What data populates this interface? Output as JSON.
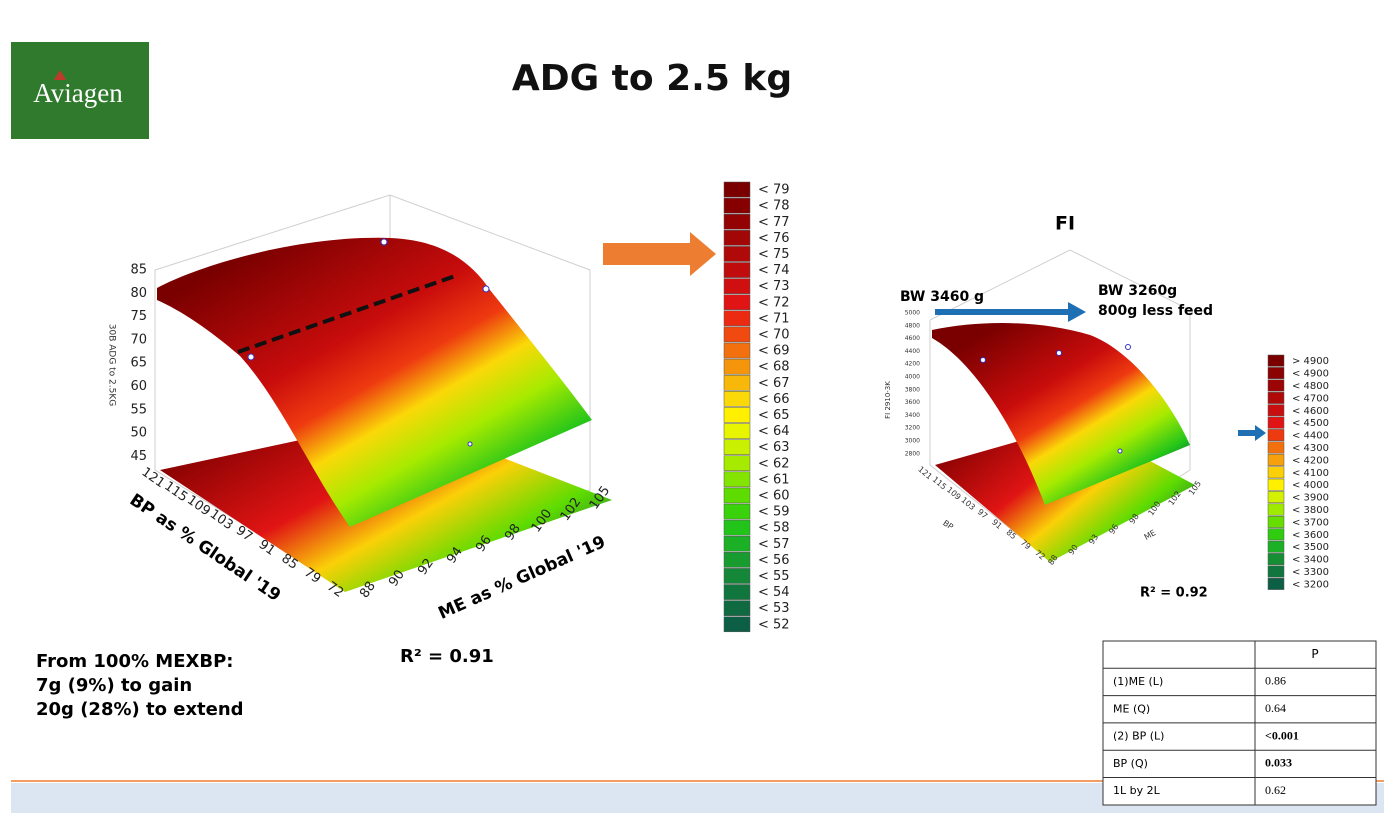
{
  "header": {
    "logo": "Aviagen",
    "title": "ADG to 2.5 kg"
  },
  "left_plot": {
    "z_axis_label": "30B ADG to 2.5KG",
    "z_ticks": [
      "85",
      "80",
      "75",
      "70",
      "65",
      "60",
      "55",
      "50",
      "45"
    ],
    "bp_axis_label": "BP as % Global '19",
    "bp_ticks": [
      "121",
      "115",
      "109",
      "103",
      "97",
      "91",
      "85",
      "79",
      "72"
    ],
    "me_axis_label": "ME as % Global '19",
    "me_ticks": [
      "88",
      "90",
      "92",
      "94",
      "96",
      "98",
      "100",
      "102",
      "105"
    ],
    "r_squared": "R² = 0.91"
  },
  "left_legend": [
    {
      "label": "< 79",
      "color": "#7a0000"
    },
    {
      "label": "< 78",
      "color": "#860000"
    },
    {
      "label": "< 77",
      "color": "#940303"
    },
    {
      "label": "< 76",
      "color": "#a20606"
    },
    {
      "label": "< 75",
      "color": "#b00909"
    },
    {
      "label": "< 74",
      "color": "#c00c0c"
    },
    {
      "label": "< 73",
      "color": "#d01010"
    },
    {
      "label": "< 72",
      "color": "#e01414"
    },
    {
      "label": "< 71",
      "color": "#ec2a12"
    },
    {
      "label": "< 70",
      "color": "#f04a10"
    },
    {
      "label": "< 69",
      "color": "#f2700e"
    },
    {
      "label": "< 68",
      "color": "#f5950c"
    },
    {
      "label": "< 67",
      "color": "#f8b80a"
    },
    {
      "label": "< 66",
      "color": "#fbd808"
    },
    {
      "label": "< 65",
      "color": "#fff000"
    },
    {
      "label": "< 64",
      "color": "#e8f500"
    },
    {
      "label": "< 63",
      "color": "#c8f000"
    },
    {
      "label": "< 62",
      "color": "#a6ea00"
    },
    {
      "label": "< 61",
      "color": "#82e400"
    },
    {
      "label": "< 60",
      "color": "#5edc00"
    },
    {
      "label": "< 59",
      "color": "#3ad20a"
    },
    {
      "label": "< 58",
      "color": "#22c41a"
    },
    {
      "label": "< 57",
      "color": "#1cb026"
    },
    {
      "label": "< 56",
      "color": "#189c30"
    },
    {
      "label": "< 55",
      "color": "#148838"
    },
    {
      "label": "< 54",
      "color": "#11763e"
    },
    {
      "label": "< 53",
      "color": "#0f6a42"
    },
    {
      "label": "< 52",
      "color": "#0c5e44"
    }
  ],
  "right_plot": {
    "title": "FI",
    "annotation_left": "BW 3460 g",
    "annotation_right": [
      "BW 3260g",
      "800g less feed"
    ],
    "z_axis_label": "FI 2910-3K",
    "z_ticks": [
      "5000",
      "4800",
      "4600",
      "4400",
      "4200",
      "4000",
      "3800",
      "3600",
      "3400",
      "3200",
      "3000",
      "2800"
    ],
    "bp_axis_label": "BP",
    "bp_ticks": [
      "121",
      "115",
      "109",
      "103",
      "97",
      "91",
      "85",
      "79",
      "72"
    ],
    "me_axis_label": "ME",
    "me_ticks": [
      "88",
      "90",
      "93",
      "96",
      "98",
      "100",
      "102",
      "105"
    ],
    "r_squared": "R² = 0.92"
  },
  "right_legend": [
    {
      "label": "> 4900",
      "color": "#7a0000"
    },
    {
      "label": "< 4900",
      "color": "#8a0202"
    },
    {
      "label": "< 4800",
      "color": "#9c0505"
    },
    {
      "label": "< 4700",
      "color": "#b00909"
    },
    {
      "label": "< 4600",
      "color": "#c80e0e"
    },
    {
      "label": "< 4500",
      "color": "#e01414"
    },
    {
      "label": "< 4400",
      "color": "#ee3a10"
    },
    {
      "label": "< 4300",
      "color": "#f2700e"
    },
    {
      "label": "< 4200",
      "color": "#f6a00c"
    },
    {
      "label": "< 4100",
      "color": "#fbd008"
    },
    {
      "label": "< 4000",
      "color": "#fff000"
    },
    {
      "label": "< 3900",
      "color": "#d4f200"
    },
    {
      "label": "< 3800",
      "color": "#a0ea00"
    },
    {
      "label": "< 3700",
      "color": "#66de00"
    },
    {
      "label": "< 3600",
      "color": "#30cc10"
    },
    {
      "label": "< 3500",
      "color": "#1cb026"
    },
    {
      "label": "< 3400",
      "color": "#168e34"
    },
    {
      "label": "< 3300",
      "color": "#11763e"
    },
    {
      "label": "< 3200",
      "color": "#0c5e44"
    }
  ],
  "notes": [
    "From 100% MEXBP:",
    "7g (9%) to gain",
    "20g (28%) to extend"
  ],
  "table": {
    "header": "P",
    "rows": [
      [
        "(1)ME (L)",
        "0.86"
      ],
      [
        "ME (Q)",
        "0.64"
      ],
      [
        "(2) BP (L)",
        "<0.001"
      ],
      [
        "BP (Q)",
        "0.033"
      ],
      [
        "1L by 2L",
        "0.62"
      ]
    ]
  }
}
